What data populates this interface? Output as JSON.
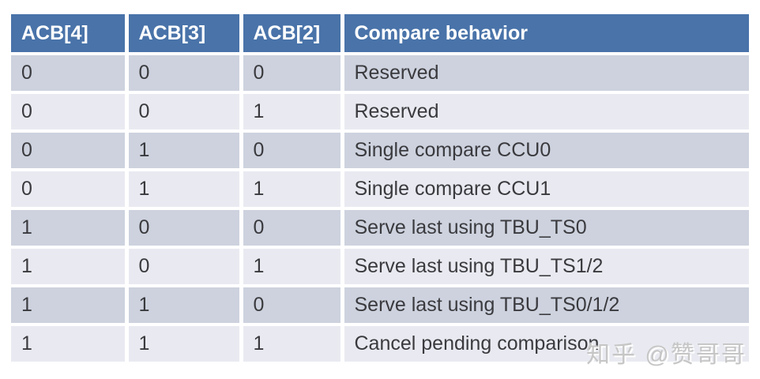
{
  "table": {
    "headers": [
      "ACB[4]",
      "ACB[3]",
      "ACB[2]",
      "Compare behavior"
    ],
    "rows": [
      [
        "0",
        "0",
        "0",
        "Reserved"
      ],
      [
        "0",
        "0",
        "1",
        "Reserved"
      ],
      [
        "0",
        "1",
        "0",
        "Single compare CCU0"
      ],
      [
        "0",
        "1",
        "1",
        "Single compare CCU1"
      ],
      [
        "1",
        "0",
        "0",
        "Serve last using TBU_TS0"
      ],
      [
        "1",
        "0",
        "1",
        "Serve last using TBU_TS1/2"
      ],
      [
        "1",
        "1",
        "0",
        "Serve last using TBU_TS0/1/2"
      ],
      [
        "1",
        "1",
        "1",
        "Cancel pending comparison"
      ]
    ]
  },
  "watermark": {
    "text": "知乎 @赞哥哥"
  },
  "colors": {
    "header_bg": "#4973A9",
    "header_text": "#FFFFFF",
    "row_odd_bg": "#CDD2DE",
    "row_even_bg": "#E9EAF1",
    "body_text": "#3A3A3E",
    "watermark_text": "#C6C6C6"
  }
}
